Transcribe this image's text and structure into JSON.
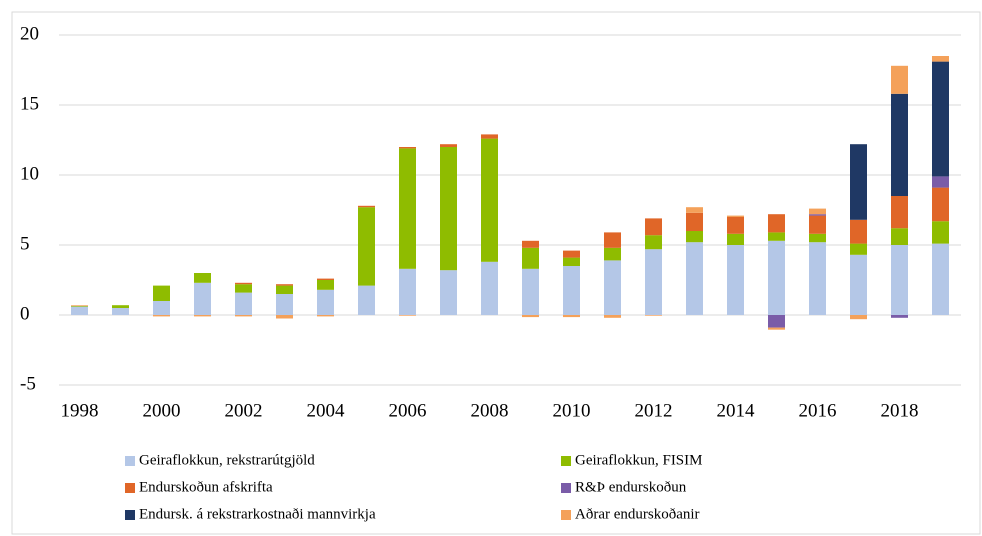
{
  "chart_data": {
    "type": "bar",
    "stacked": true,
    "categories": [
      "1998",
      null,
      "2000",
      null,
      "2002",
      null,
      "2004",
      null,
      "2006",
      null,
      "2008",
      null,
      "2010",
      null,
      "2012",
      null,
      "2014",
      null,
      "2016",
      null,
      "2018",
      null
    ],
    "series": [
      {
        "name": "Geiraflokkun, rekstrarútgjöld",
        "color": "#b4c7e7",
        "values": [
          0.6,
          0.5,
          1.0,
          2.3,
          1.6,
          1.5,
          1.8,
          2.1,
          3.3,
          3.2,
          3.8,
          3.3,
          3.5,
          3.9,
          4.7,
          5.2,
          5.0,
          5.3,
          5.2,
          4.3,
          5.0,
          5.1
        ]
      },
      {
        "name": "Geiraflokkun, FISIM",
        "color": "#8fbc00",
        "values": [
          0.05,
          0.2,
          1.1,
          0.7,
          0.6,
          0.6,
          0.7,
          5.6,
          8.6,
          8.8,
          8.8,
          1.5,
          0.6,
          0.9,
          1.0,
          0.8,
          0.8,
          0.6,
          0.6,
          0.8,
          1.2,
          1.6
        ]
      },
      {
        "name": "Endurskoðun afskrifta",
        "color": "#e06628",
        "values": [
          0,
          0,
          0,
          0,
          0.1,
          0.1,
          0.1,
          0.1,
          0.1,
          0.2,
          0.3,
          0.5,
          0.5,
          1.1,
          1.2,
          1.3,
          1.2,
          1.3,
          1.3,
          1.7,
          2.3,
          2.4
        ]
      },
      {
        "name": "R&Þ endurskoðun",
        "color": "#7a5ca8",
        "values": [
          0,
          0,
          0,
          0,
          0,
          0,
          0,
          0,
          0,
          0,
          0,
          0,
          0,
          0,
          0,
          0,
          0,
          -0.9,
          0.1,
          0,
          -0.2,
          0.8
        ]
      },
      {
        "name": "Endursk. á rekstrarkostnaði mannvirkja",
        "color": "#1f3864",
        "values": [
          0,
          0,
          0,
          0,
          0,
          0,
          0,
          0,
          0,
          0,
          0,
          0,
          0,
          0,
          0,
          0,
          0,
          0,
          0,
          5.4,
          7.3,
          8.2
        ]
      },
      {
        "name": "Aðrar endurskoðanir",
        "color": "#f4a15a",
        "values": [
          0.05,
          0,
          -0.1,
          -0.1,
          -0.1,
          -0.25,
          -0.1,
          0,
          -0.05,
          0,
          0,
          -0.15,
          -0.15,
          -0.2,
          -0.05,
          0.4,
          0.1,
          -0.15,
          0.4,
          -0.3,
          2.0,
          0.4
        ]
      }
    ],
    "ylim": [
      -5,
      20
    ],
    "yticks": [
      -5,
      0,
      5,
      10,
      15,
      20
    ],
    "grid": true,
    "legend": "bottom"
  }
}
